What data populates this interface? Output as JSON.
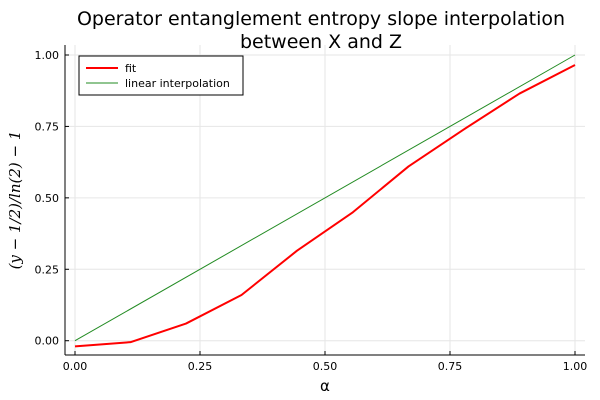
{
  "chart_data": {
    "type": "line",
    "title_line1": "Operator entanglement entropy slope interpolation",
    "title_line2": "between X and Z",
    "xlabel": "α",
    "ylabel": "(y − 1/2)/ln(2) − 1",
    "xlim": [
      -0.02,
      1.02
    ],
    "ylim": [
      -0.05,
      1.035
    ],
    "x_ticks": [
      0.0,
      0.25,
      0.5,
      0.75,
      1.0
    ],
    "x_tick_labels": [
      "0.00",
      "0.25",
      "0.50",
      "0.75",
      "1.00"
    ],
    "y_ticks": [
      0.0,
      0.25,
      0.5,
      0.75,
      1.0
    ],
    "y_tick_labels": [
      "0.00",
      "0.25",
      "0.50",
      "0.75",
      "1.00"
    ],
    "grid": true,
    "legend_position": "top-left",
    "series": [
      {
        "name": "fit",
        "color": "#ff0000",
        "x": [
          0.0,
          0.111,
          0.222,
          0.333,
          0.444,
          0.556,
          0.667,
          0.778,
          0.889,
          1.0
        ],
        "y": [
          -0.02,
          -0.005,
          0.06,
          0.16,
          0.315,
          0.45,
          0.61,
          0.74,
          0.865,
          0.965
        ]
      },
      {
        "name": "linear interpolation",
        "color": "#228b22",
        "x": [
          0.0,
          1.0
        ],
        "y": [
          0.0,
          1.0
        ]
      }
    ]
  }
}
